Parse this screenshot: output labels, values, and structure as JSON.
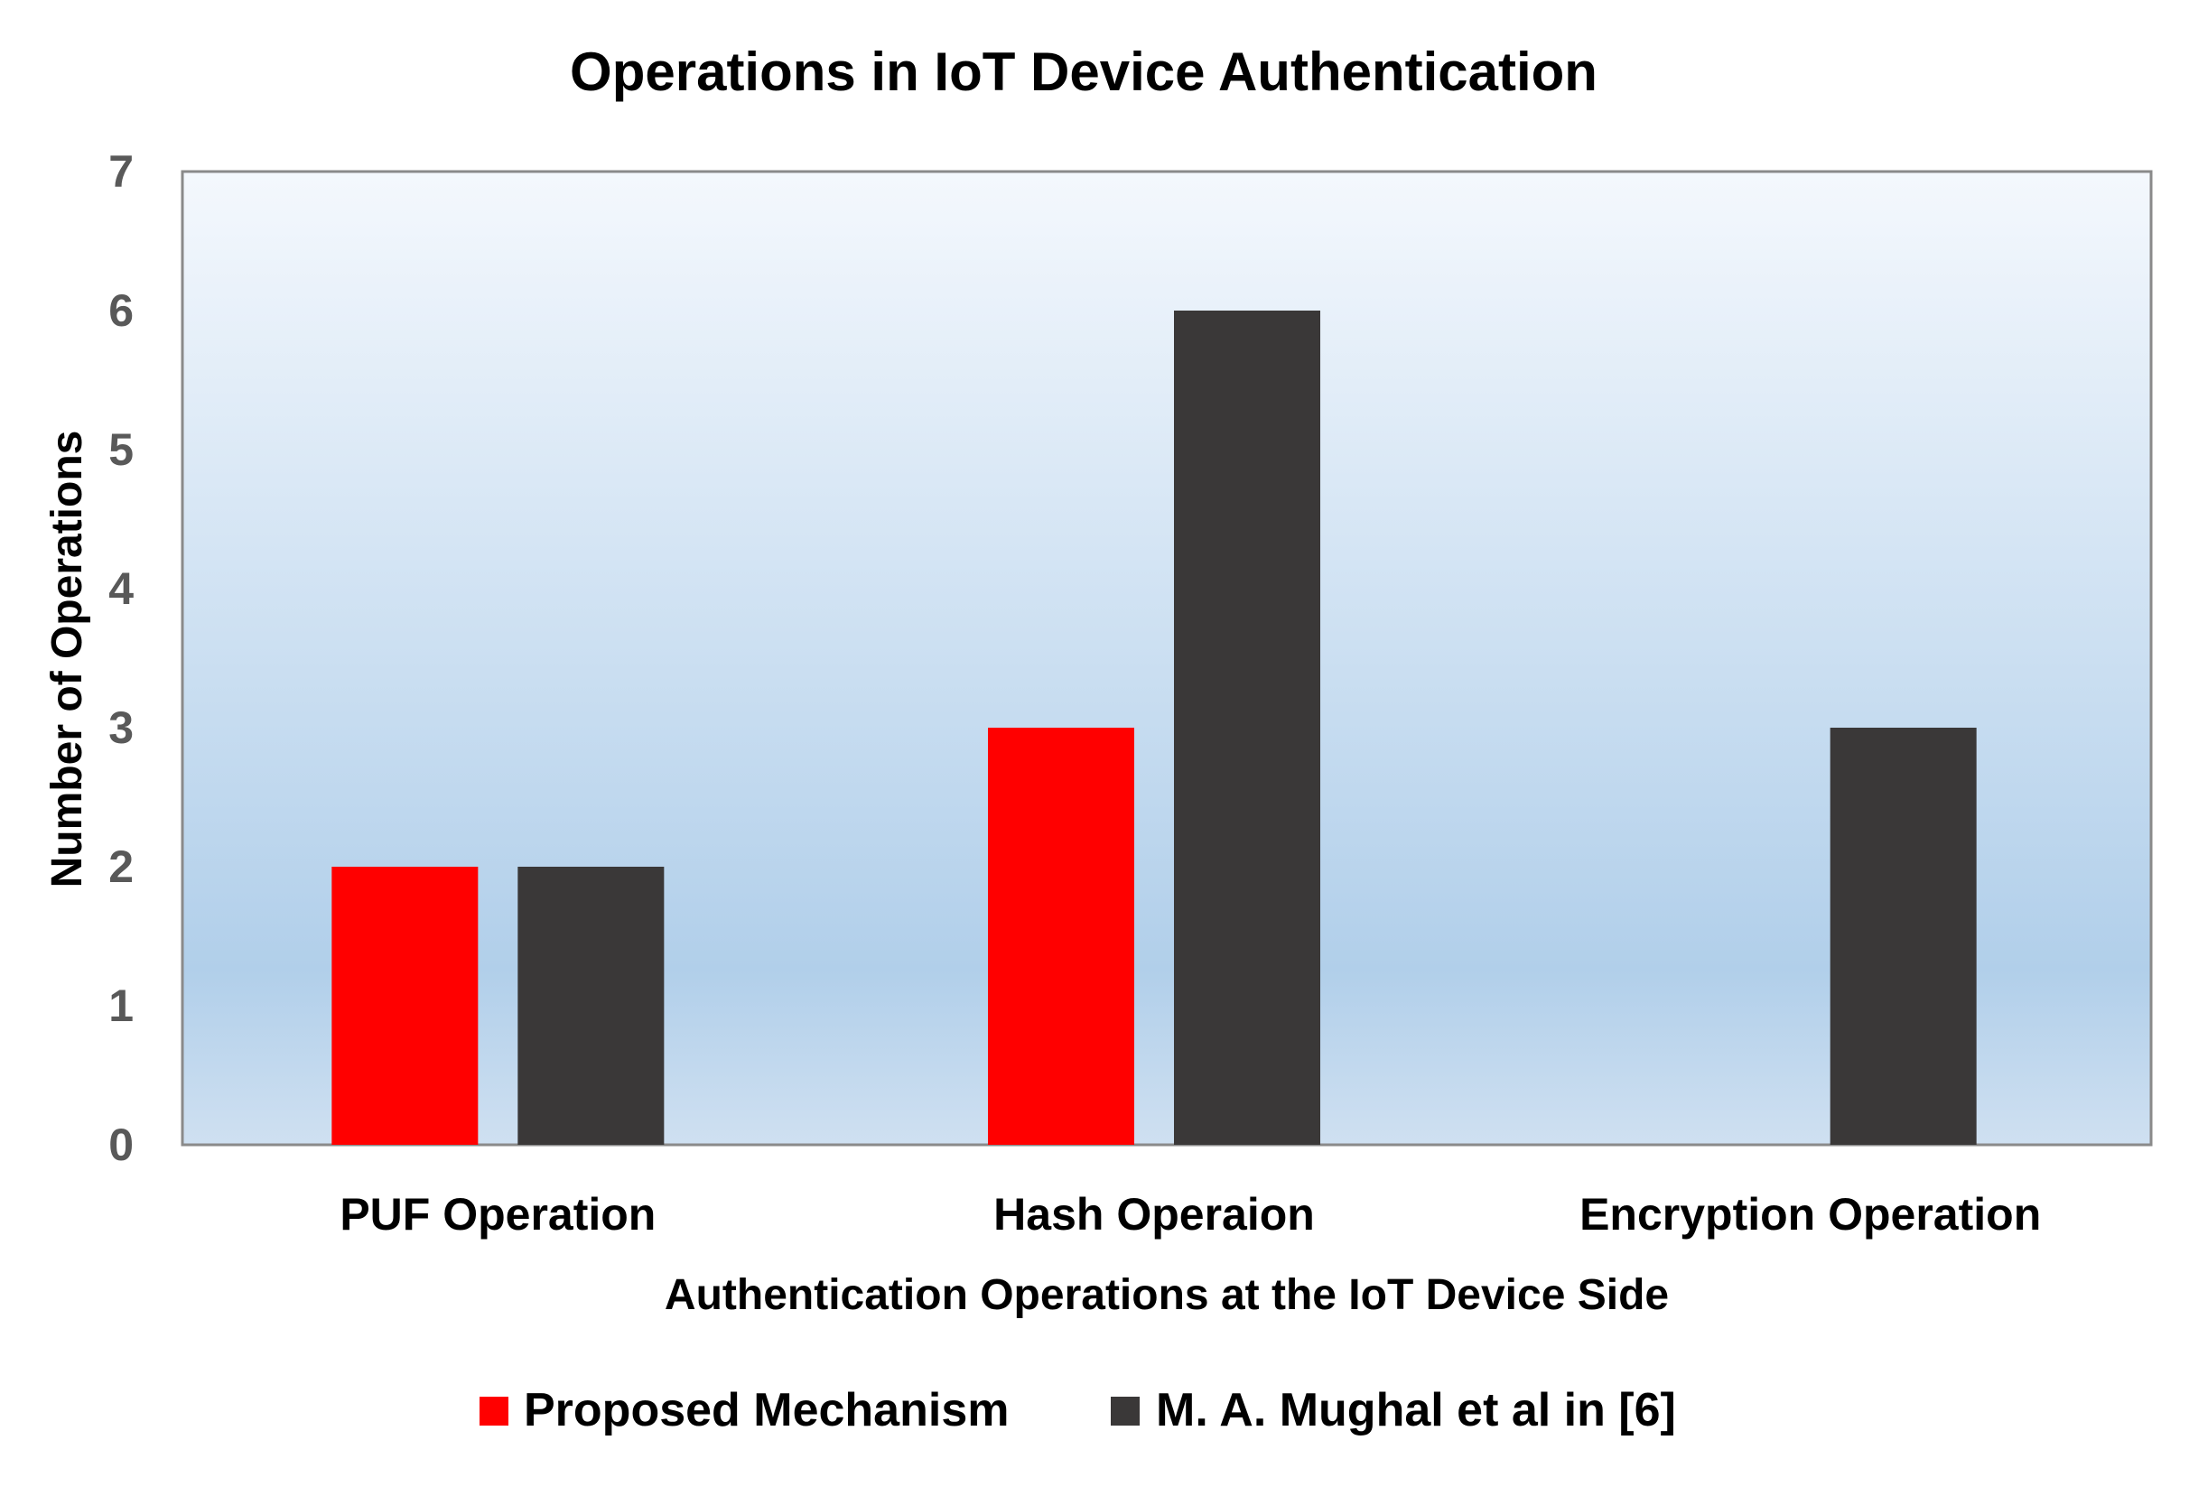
{
  "chart_data": {
    "type": "bar",
    "title": "Operations in IoT Device Authentication",
    "xlabel": "Authentication Operations at the IoT Device Side",
    "ylabel": "Number of Operations",
    "categories": [
      "PUF Operation",
      "Hash Operaion",
      "Encryption Operation"
    ],
    "series": [
      {
        "name": "Proposed Mechanism",
        "color": "#ff0000",
        "values": [
          2,
          3,
          0
        ]
      },
      {
        "name": "M. A. Mughal et al in [6]",
        "color": "#3a3838",
        "values": [
          2,
          6,
          3
        ]
      }
    ],
    "ylim": [
      0,
      7
    ],
    "yticks": [
      "0",
      "1",
      "2",
      "3",
      "4",
      "5",
      "6",
      "7"
    ],
    "grid": false,
    "legend_position": "bottom",
    "background_gradient": [
      "#f4f8fd",
      "#b1cfea",
      "#cfe0f1"
    ]
  }
}
